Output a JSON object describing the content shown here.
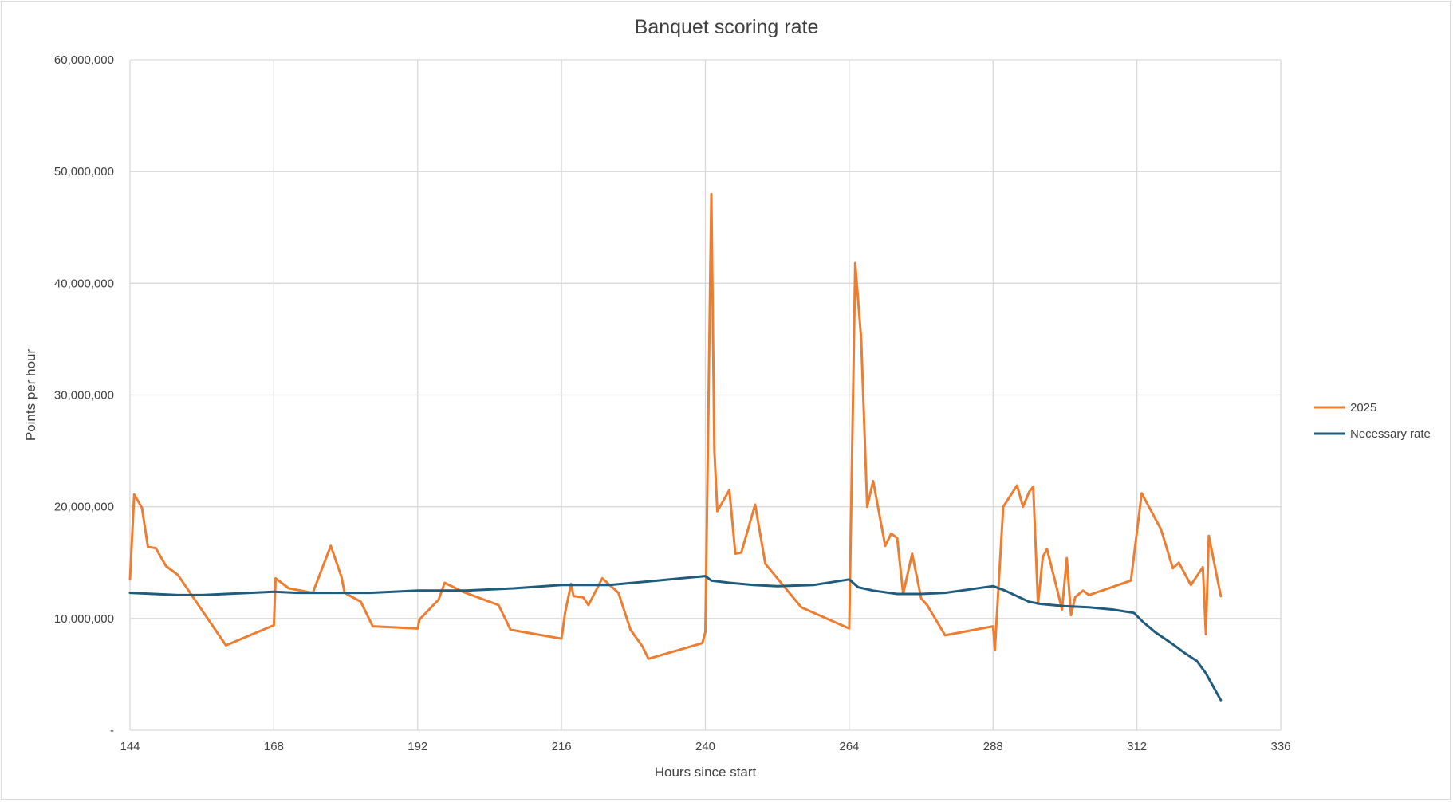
{
  "chart_data": {
    "type": "line",
    "title": "Banquet scoring rate",
    "xlabel": "Hours since start",
    "ylabel": "Points per hour",
    "xlim": [
      144,
      336
    ],
    "ylim": [
      0,
      60000000
    ],
    "x_ticks": [
      "144",
      "168",
      "192",
      "216",
      "240",
      "264",
      "288",
      "312",
      "336"
    ],
    "y_ticks": [
      "-",
      "10,000,000",
      "20,000,000",
      "30,000,000",
      "40,000,000",
      "50,000,000",
      "60,000,000"
    ],
    "grid": true,
    "legend_position": "right",
    "series": [
      {
        "name": "2025",
        "color": "#ED7D31",
        "points": [
          [
            144.0,
            13500000
          ],
          [
            144.7,
            21100000
          ],
          [
            146.0,
            19900000
          ],
          [
            147.0,
            16400000
          ],
          [
            148.3,
            16300000
          ],
          [
            150.0,
            14700000
          ],
          [
            152.0,
            13900000
          ],
          [
            160.0,
            7600000
          ],
          [
            168.0,
            9400000
          ],
          [
            168.3,
            13600000
          ],
          [
            170.5,
            12700000
          ],
          [
            174.5,
            12300000
          ],
          [
            177.5,
            16500000
          ],
          [
            179.3,
            13700000
          ],
          [
            179.8,
            12300000
          ],
          [
            182.5,
            11500000
          ],
          [
            184.5,
            9300000
          ],
          [
            192.0,
            9100000
          ],
          [
            192.3,
            9900000
          ],
          [
            195.5,
            11700000
          ],
          [
            196.5,
            13200000
          ],
          [
            199.5,
            12400000
          ],
          [
            205.5,
            11200000
          ],
          [
            207.5,
            9000000
          ],
          [
            216.0,
            8200000
          ],
          [
            216.6,
            10500000
          ],
          [
            217.6,
            13100000
          ],
          [
            218.0,
            12000000
          ],
          [
            219.6,
            11900000
          ],
          [
            220.5,
            11200000
          ],
          [
            222.8,
            13600000
          ],
          [
            225.5,
            12300000
          ],
          [
            227.5,
            9000000
          ],
          [
            229.5,
            7500000
          ],
          [
            230.5,
            6400000
          ],
          [
            239.5,
            7800000
          ],
          [
            240.0,
            8800000
          ],
          [
            241.0,
            48000000
          ],
          [
            241.5,
            25000000
          ],
          [
            242.0,
            19600000
          ],
          [
            244.0,
            21500000
          ],
          [
            245.0,
            15800000
          ],
          [
            246.0,
            15900000
          ],
          [
            248.3,
            20200000
          ],
          [
            250.0,
            14900000
          ],
          [
            256.0,
            11000000
          ],
          [
            264.0,
            9100000
          ],
          [
            265.0,
            41800000
          ],
          [
            266.0,
            35000000
          ],
          [
            267.0,
            20000000
          ],
          [
            268.0,
            22300000
          ],
          [
            270.0,
            16500000
          ],
          [
            271.0,
            17600000
          ],
          [
            272.0,
            17200000
          ],
          [
            273.0,
            12200000
          ],
          [
            274.5,
            15800000
          ],
          [
            276.0,
            11800000
          ],
          [
            277.0,
            11200000
          ],
          [
            280.0,
            8500000
          ],
          [
            288.0,
            9300000
          ],
          [
            288.3,
            7200000
          ],
          [
            289.7,
            20000000
          ],
          [
            292.0,
            21900000
          ],
          [
            293.0,
            20000000
          ],
          [
            294.0,
            21300000
          ],
          [
            294.7,
            21800000
          ],
          [
            295.5,
            11300000
          ],
          [
            296.3,
            15500000
          ],
          [
            297.0,
            16200000
          ],
          [
            298.5,
            13000000
          ],
          [
            299.5,
            10800000
          ],
          [
            300.3,
            15400000
          ],
          [
            301.0,
            10300000
          ],
          [
            301.7,
            11900000
          ],
          [
            303.0,
            12500000
          ],
          [
            304.0,
            12100000
          ],
          [
            311.0,
            13400000
          ],
          [
            312.8,
            21200000
          ],
          [
            316.0,
            18000000
          ],
          [
            318.0,
            14500000
          ],
          [
            319.0,
            15000000
          ],
          [
            321.0,
            13000000
          ],
          [
            323.0,
            14600000
          ],
          [
            323.5,
            8600000
          ],
          [
            324.0,
            17400000
          ],
          [
            326.0,
            12000000
          ]
        ]
      },
      {
        "name": "Necessary rate",
        "color": "#1F5C7E",
        "points": [
          [
            144.0,
            12300000
          ],
          [
            148.0,
            12200000
          ],
          [
            152.0,
            12100000
          ],
          [
            156.0,
            12100000
          ],
          [
            160.0,
            12200000
          ],
          [
            168.0,
            12400000
          ],
          [
            172.0,
            12300000
          ],
          [
            176.0,
            12300000
          ],
          [
            180.0,
            12300000
          ],
          [
            184.0,
            12300000
          ],
          [
            192.0,
            12500000
          ],
          [
            200.0,
            12500000
          ],
          [
            208.0,
            12700000
          ],
          [
            216.0,
            13000000
          ],
          [
            224.0,
            13000000
          ],
          [
            228.0,
            13200000
          ],
          [
            232.0,
            13400000
          ],
          [
            236.0,
            13600000
          ],
          [
            240.0,
            13800000
          ],
          [
            241.0,
            13400000
          ],
          [
            244.0,
            13200000
          ],
          [
            248.0,
            13000000
          ],
          [
            252.0,
            12900000
          ],
          [
            258.0,
            13000000
          ],
          [
            264.0,
            13500000
          ],
          [
            265.5,
            12800000
          ],
          [
            268.0,
            12500000
          ],
          [
            272.0,
            12200000
          ],
          [
            276.0,
            12200000
          ],
          [
            280.0,
            12300000
          ],
          [
            288.0,
            12900000
          ],
          [
            290.0,
            12500000
          ],
          [
            292.0,
            12000000
          ],
          [
            294.0,
            11500000
          ],
          [
            296.0,
            11300000
          ],
          [
            300.0,
            11100000
          ],
          [
            304.0,
            11000000
          ],
          [
            308.0,
            10800000
          ],
          [
            311.5,
            10500000
          ],
          [
            313.0,
            9700000
          ],
          [
            315.0,
            8800000
          ],
          [
            318.0,
            7700000
          ],
          [
            320.0,
            6900000
          ],
          [
            322.0,
            6200000
          ],
          [
            323.5,
            5100000
          ],
          [
            326.0,
            2700000
          ]
        ]
      }
    ]
  }
}
